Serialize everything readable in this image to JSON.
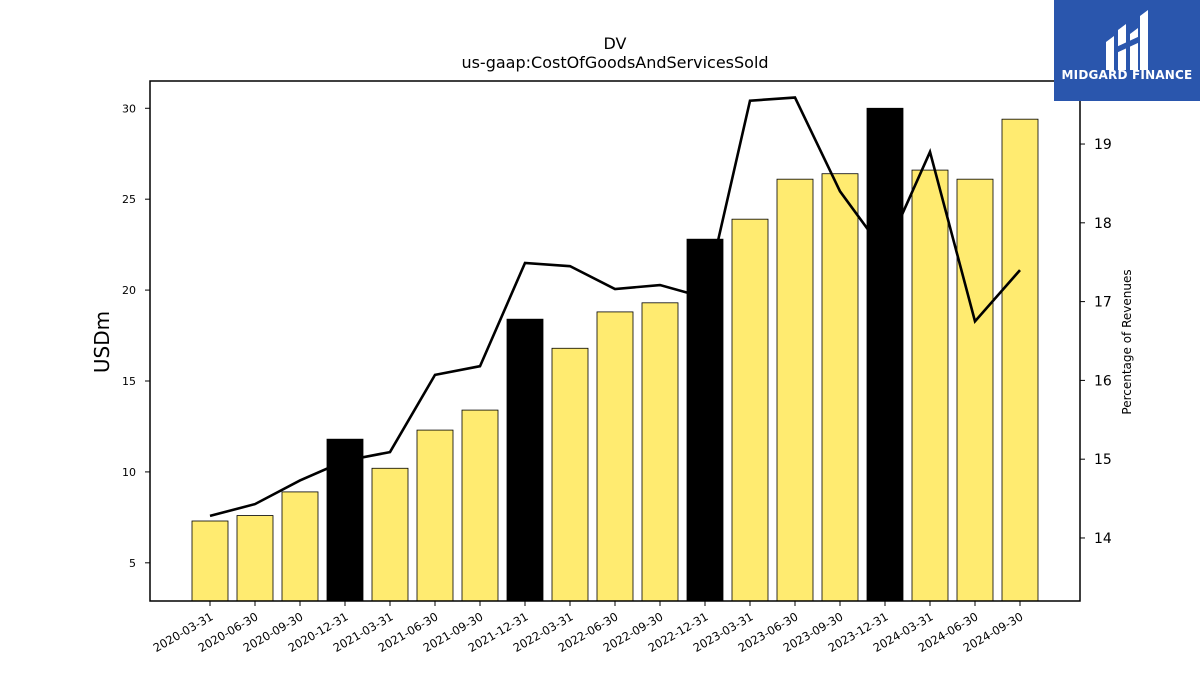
{
  "logo": {
    "text": "MIDGARD FINANCE",
    "color": "#2a56ad"
  },
  "chart_data": {
    "type": "bar",
    "title": "DV",
    "subtitle": "us-gaap:CostOfGoodsAndServicesSold",
    "ylabel": "USDm",
    "y2label": "Percentage of Revenues",
    "ylim": [
      2.9,
      31.5
    ],
    "y2lim": [
      13.2,
      19.8
    ],
    "yticks": [
      5,
      10,
      15,
      20,
      25,
      30
    ],
    "y2ticks": [
      14,
      15,
      16,
      17,
      18,
      19
    ],
    "grid": false,
    "categories": [
      "2020-03-31",
      "2020-06-30",
      "2020-09-30",
      "2020-12-31",
      "2021-03-31",
      "2021-06-30",
      "2021-09-30",
      "2021-12-31",
      "2022-03-31",
      "2022-06-30",
      "2022-09-30",
      "2022-12-31",
      "2023-03-31",
      "2023-06-30",
      "2023-09-30",
      "2023-12-31",
      "2024-03-31",
      "2024-06-30",
      "2024-09-30"
    ],
    "series": [
      {
        "type": "bar",
        "axis": "left",
        "values": [
          7.3,
          7.6,
          8.9,
          11.8,
          10.2,
          12.3,
          13.4,
          18.4,
          16.8,
          18.8,
          19.3,
          22.8,
          23.9,
          26.1,
          26.4,
          30.0,
          26.6,
          26.1,
          29.4
        ],
        "colors": [
          "#ffeb70",
          "#ffeb70",
          "#ffeb70",
          "#000000",
          "#ffeb70",
          "#ffeb70",
          "#ffeb70",
          "#000000",
          "#ffeb70",
          "#ffeb70",
          "#ffeb70",
          "#000000",
          "#ffeb70",
          "#ffeb70",
          "#ffeb70",
          "#000000",
          "#ffeb70",
          "#ffeb70",
          "#ffeb70"
        ]
      },
      {
        "type": "line",
        "axis": "right",
        "color": "#000000",
        "values": [
          14.28,
          14.43,
          14.73,
          14.98,
          15.09,
          16.07,
          16.18,
          17.49,
          17.45,
          17.16,
          17.21,
          17.05,
          19.55,
          19.59,
          18.4,
          17.62,
          18.9,
          16.75,
          17.4
        ]
      }
    ]
  }
}
